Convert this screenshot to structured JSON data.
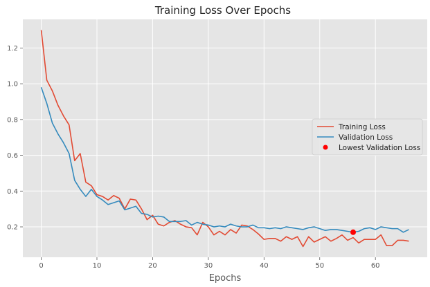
{
  "chart_data": {
    "type": "line",
    "title": "Training Loss Over Epochs",
    "xlabel": "Epochs",
    "ylabel": "",
    "xlim": [
      -3.3,
      69.3
    ],
    "ylim": [
      0.03,
      1.36
    ],
    "xticks": [
      0,
      10,
      20,
      30,
      40,
      50,
      60
    ],
    "yticks": [
      0.2,
      0.4,
      0.6,
      0.8,
      1.0,
      1.2
    ],
    "ytick_labels": [
      "0.2",
      "0.4",
      "0.6",
      "0.8",
      "1.0",
      "1.2"
    ],
    "grid": true,
    "legend_position": "center-right",
    "x": [
      0,
      1,
      2,
      3,
      4,
      5,
      6,
      7,
      8,
      9,
      10,
      11,
      12,
      13,
      14,
      15,
      16,
      17,
      18,
      19,
      20,
      21,
      22,
      23,
      24,
      25,
      26,
      27,
      28,
      29,
      30,
      31,
      32,
      33,
      34,
      35,
      36,
      37,
      38,
      39,
      40,
      41,
      42,
      43,
      44,
      45,
      46,
      47,
      48,
      49,
      50,
      51,
      52,
      53,
      54,
      55,
      56,
      57,
      58,
      59,
      60,
      61,
      62,
      63,
      64,
      65,
      66
    ],
    "series": [
      {
        "name": "Training Loss",
        "color": "#E24A33",
        "values": [
          1.3,
          1.02,
          0.96,
          0.88,
          0.82,
          0.77,
          0.57,
          0.61,
          0.45,
          0.43,
          0.38,
          0.37,
          0.35,
          0.375,
          0.36,
          0.3,
          0.355,
          0.35,
          0.3,
          0.24,
          0.265,
          0.215,
          0.205,
          0.225,
          0.235,
          0.215,
          0.2,
          0.195,
          0.155,
          0.225,
          0.2,
          0.155,
          0.175,
          0.155,
          0.185,
          0.165,
          0.21,
          0.205,
          0.185,
          0.16,
          0.13,
          0.135,
          0.135,
          0.12,
          0.145,
          0.13,
          0.145,
          0.09,
          0.145,
          0.115,
          0.13,
          0.145,
          0.12,
          0.135,
          0.155,
          0.125,
          0.14,
          0.11,
          0.13,
          0.13,
          0.13,
          0.155,
          0.095,
          0.095,
          0.125,
          0.125,
          0.12
        ]
      },
      {
        "name": "Validation Loss",
        "color": "#348ABD",
        "values": [
          0.98,
          0.89,
          0.78,
          0.72,
          0.67,
          0.61,
          0.46,
          0.41,
          0.37,
          0.41,
          0.37,
          0.35,
          0.325,
          0.335,
          0.345,
          0.295,
          0.305,
          0.315,
          0.275,
          0.27,
          0.255,
          0.26,
          0.255,
          0.23,
          0.23,
          0.23,
          0.235,
          0.21,
          0.225,
          0.215,
          0.21,
          0.2,
          0.205,
          0.2,
          0.215,
          0.205,
          0.2,
          0.2,
          0.21,
          0.195,
          0.195,
          0.19,
          0.195,
          0.19,
          0.2,
          0.195,
          0.19,
          0.185,
          0.195,
          0.2,
          0.19,
          0.18,
          0.185,
          0.185,
          0.18,
          0.175,
          0.17,
          0.175,
          0.19,
          0.195,
          0.185,
          0.2,
          0.195,
          0.19,
          0.19,
          0.17,
          0.185
        ]
      }
    ],
    "highlight": {
      "name": "Lowest Validation Loss",
      "color": "#ff0000",
      "x": 56,
      "y": 0.17
    }
  }
}
